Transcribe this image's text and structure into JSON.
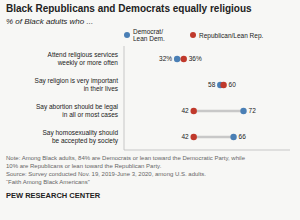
{
  "chart_data": {
    "type": "dumbbell",
    "title": "Black Republicans and Democrats equally religious",
    "subtitle": "% of Black adults who ...",
    "categories": [
      "Attend religious services\nweekly or more often",
      "Say religion is very important\nin their lives",
      "Say abortion should be legal\nin all or most cases",
      "Say homosexuality should\nbe accepted by society"
    ],
    "series": [
      {
        "name": "Democrat/\nLean Dem.",
        "color": "#4a7fb5",
        "values": [
          32,
          58,
          72,
          66
        ],
        "value_labels": [
          "32%",
          "58",
          "72",
          "66"
        ]
      },
      {
        "name": "Republican/Lean Rep.",
        "color": "#c0392b",
        "values": [
          36,
          60,
          42,
          42
        ],
        "value_labels": [
          "36%",
          "60",
          "42",
          "42"
        ]
      }
    ],
    "xlim": [
      0,
      100
    ],
    "tick_labels": false,
    "data_labels": true,
    "legend": "top",
    "annotations": [
      "Note: Among Black adults, 84% are Democrats or lean toward the Democratic Party, while",
      "10% are Republicans or lean toward the Republican Party.",
      "Source: Survey conducted Nov. 19, 2019-June 3, 2020, among U.S. adults.",
      "“Faith Among Black Americans”",
      "PEW RESEARCH CENTER"
    ]
  }
}
